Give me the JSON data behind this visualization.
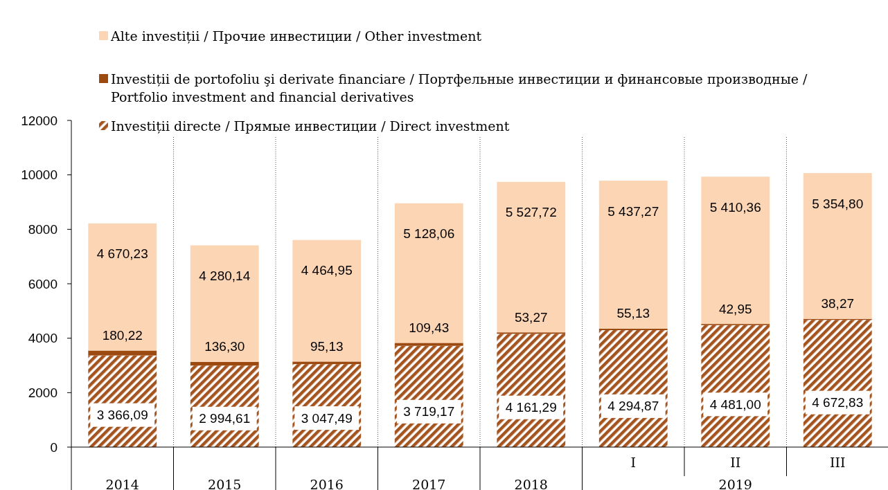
{
  "chart_data": {
    "type": "bar",
    "stacked": true,
    "categories": [
      "2014",
      "2015",
      "2016",
      "2017",
      "2018",
      "I",
      "II",
      "III"
    ],
    "series": [
      {
        "name": "Investiții directe /  Прямые инвестиции / Direct investment",
        "color": "#a3541f",
        "values": [
          3366.09,
          2994.61,
          3047.49,
          3719.17,
          4161.29,
          4294.87,
          4481.0,
          4672.83
        ],
        "value_labels": [
          "3 366,09",
          "2 994,61",
          "3 047,49",
          "3 719,17",
          "4 161,29",
          "4 294,87",
          "4 481,00",
          "4 672,83"
        ]
      },
      {
        "name": "Investiții de portofoliu şi derivate financiare / Портфельные инвестиции и финансовые производные / Portfolio investment and financial derivatives",
        "color": "#9c4a10",
        "values": [
          180.22,
          136.3,
          95.13,
          109.43,
          53.27,
          55.13,
          42.95,
          38.27
        ],
        "value_labels": [
          "180,22",
          "136,30",
          "95,13",
          "109,43",
          "53,27",
          "55,13",
          "42,95",
          "38,27"
        ]
      },
      {
        "name": "Alte investiții / Прочие инвестиции / Other investment",
        "color": "#fcd5b5",
        "values": [
          4670.23,
          4280.14,
          4464.95,
          5128.06,
          5527.72,
          5437.27,
          5410.36,
          5354.8
        ],
        "value_labels": [
          "4 670,23",
          "4 280,14",
          "4 464,95",
          "5 128,06",
          "5 527,72",
          "5 437,27",
          "5 410,36",
          "5 354,80"
        ]
      }
    ],
    "ylim": [
      0,
      12000
    ],
    "yticks": [
      0,
      2000,
      4000,
      6000,
      8000,
      10000,
      12000
    ],
    "legend": "top",
    "annotations": [
      "2019"
    ]
  }
}
